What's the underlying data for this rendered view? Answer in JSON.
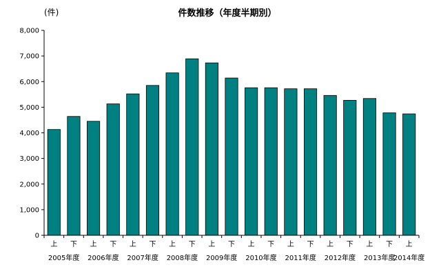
{
  "chart_data": {
    "type": "bar",
    "title": "件数推移（年度半期別）",
    "unit_label": "(件)",
    "xlabel": "",
    "ylabel": "",
    "ylim": [
      0,
      8000
    ],
    "yticks": [
      0,
      1000,
      2000,
      3000,
      4000,
      5000,
      6000,
      7000,
      8000
    ],
    "ytick_labels": [
      "0",
      "1,000",
      "2,000",
      "3,000",
      "4,000",
      "5,000",
      "6,000",
      "7,000",
      "8,000"
    ],
    "grid": false,
    "legend": "none",
    "bar_color": "#008080",
    "categories": [
      "上",
      "下",
      "上",
      "下",
      "上",
      "下",
      "上",
      "下",
      "上",
      "下",
      "上",
      "下",
      "上",
      "下",
      "上",
      "下",
      "上",
      "下",
      "上"
    ],
    "years": [
      "2005年度",
      "2006年度",
      "2007年度",
      "2008年度",
      "2009年度",
      "2010年度",
      "2011年度",
      "2012年度",
      "2013年度",
      "2014年度"
    ],
    "values": [
      4130,
      4640,
      4450,
      5130,
      5520,
      5850,
      6340,
      6890,
      6730,
      6140,
      5760,
      5760,
      5720,
      5720,
      5460,
      5270,
      5340,
      4780,
      4740
    ]
  }
}
